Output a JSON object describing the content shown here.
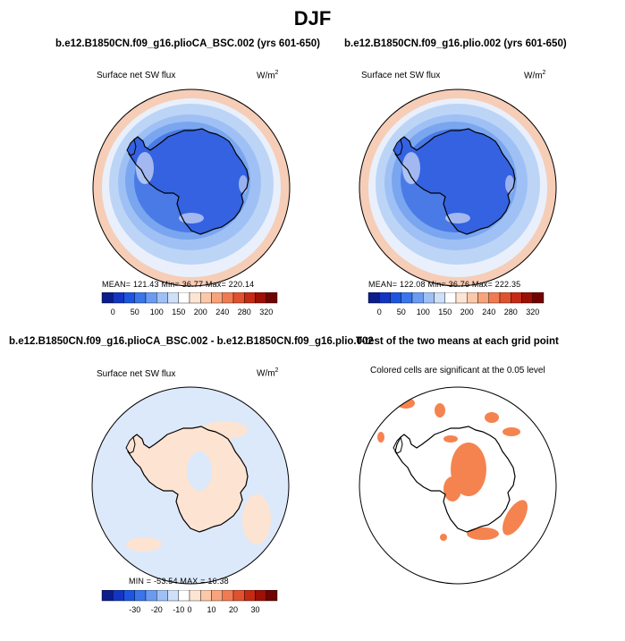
{
  "title": "DJF",
  "panels": [
    {
      "title": "b.e12.B1850CN.f09_g16.plioCA_BSC.002 (yrs 601-650)",
      "subtitle": "Surface net SW flux",
      "units_base": "W/m",
      "units_exp": "2",
      "stats": "MEAN= 121.43 Min= 36.77 Max= 220.14",
      "colorbar": {
        "colors": [
          "#0b1d8a",
          "#1435c2",
          "#1d55e0",
          "#3a75ea",
          "#6a9bf0",
          "#9ec0f5",
          "#cfe0f9",
          "#ffffff",
          "#fde5d4",
          "#fbc9a9",
          "#f7a47c",
          "#f07a52",
          "#e0522f",
          "#c42b14",
          "#9c1006",
          "#6e0502"
        ],
        "labels": [
          "0",
          "50",
          "100",
          "150",
          "200",
          "240",
          "280",
          "320"
        ]
      },
      "map": {
        "outer_ring": "#f6cdb7",
        "ocean_mid": "#bcd4f6",
        "shelf": "#7aa6f0",
        "ice": "#3462e0",
        "land_outline": "#000000"
      }
    },
    {
      "title": "b.e12.B1850CN.f09_g16.plio.002 (yrs 601-650)",
      "subtitle": "Surface net SW flux",
      "units_base": "W/m",
      "units_exp": "2",
      "stats": "MEAN= 122.08 Min= 36.76 Max= 222.35",
      "colorbar": {
        "colors": [
          "#0b1d8a",
          "#1435c2",
          "#1d55e0",
          "#3a75ea",
          "#6a9bf0",
          "#9ec0f5",
          "#cfe0f9",
          "#ffffff",
          "#fde5d4",
          "#fbc9a9",
          "#f7a47c",
          "#f07a52",
          "#e0522f",
          "#c42b14",
          "#9c1006",
          "#6e0502"
        ],
        "labels": [
          "0",
          "50",
          "100",
          "150",
          "200",
          "240",
          "280",
          "320"
        ]
      },
      "map": {
        "outer_ring": "#f6cdb7",
        "ocean_mid": "#bcd4f6",
        "shelf": "#7aa6f0",
        "ice": "#3462e0",
        "land_outline": "#000000"
      }
    },
    {
      "title": "b.e12.B1850CN.f09_g16.plioCA_BSC.002 - b.e12.B1850CN.f09_g16.plio.002",
      "subtitle": "Surface net SW flux",
      "units_base": "W/m",
      "units_exp": "2",
      "stats": "MIN = -53.54 MAX = 16.38",
      "colorbar": {
        "colors": [
          "#0b1d8a",
          "#1435c2",
          "#1d55e0",
          "#3a75ea",
          "#6a9bf0",
          "#9ec0f5",
          "#cfe0f9",
          "#ffffff",
          "#fde5d4",
          "#fbc9a9",
          "#f7a47c",
          "#f07a52",
          "#e0522f",
          "#c42b14",
          "#9c1006",
          "#6e0502"
        ],
        "labels": [
          "-30",
          "-20",
          "-10",
          "0",
          "10",
          "20",
          "30"
        ]
      },
      "map": {
        "background": "#dce9fb",
        "patch": "#fde3d1",
        "land_outline": "#000000"
      }
    },
    {
      "title": "T-test of the two means at each grid point",
      "subtitle": "Colored cells are significant at the 0.05 level",
      "map": {
        "background": "#ffffff",
        "significant": "#f5834f",
        "land_outline": "#000000"
      }
    }
  ]
}
